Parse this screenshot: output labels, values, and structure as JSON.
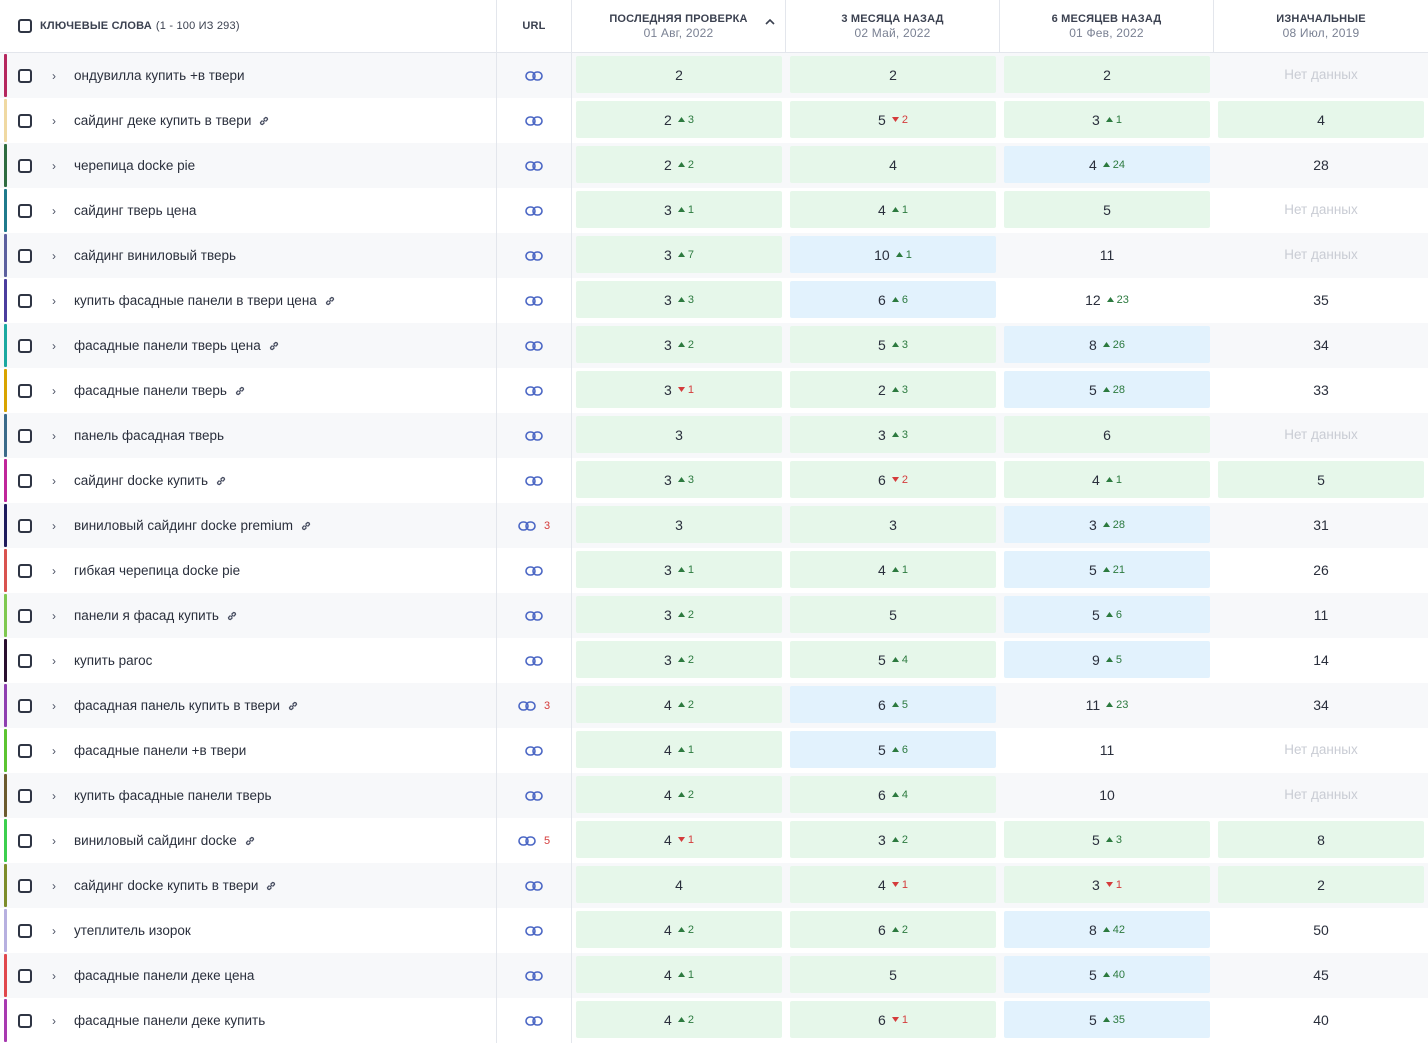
{
  "header": {
    "keywords_title": "Ключевые слова",
    "keywords_count": "(1 - 100 из 293)",
    "url_title": "URL",
    "col_last_title": "Последняя проверка",
    "col_last_date": "01 Авг, 2022",
    "col_3m_title": "3 месяца назад",
    "col_3m_date": "02 Май, 2022",
    "col_6m_title": "6 месяцев назад",
    "col_6m_date": "01 Фев, 2022",
    "col_init_title": "Изначальные",
    "col_init_date": "08 Июл, 2019",
    "sort_icon": "chevron-up-icon"
  },
  "rows": [
    {
      "kw": "ондувилла купить +в твери",
      "color": "#b5275e",
      "link": false,
      "url_count": "",
      "last": {
        "v": "2",
        "d": "",
        "dir": "",
        "bg": "green"
      },
      "m3": {
        "v": "2",
        "d": "",
        "dir": "",
        "bg": "green"
      },
      "m6": {
        "v": "2",
        "d": "",
        "dir": "",
        "bg": "green"
      },
      "init": {
        "v": "Нет данных",
        "d": "",
        "dir": "",
        "bg": "nodata"
      }
    },
    {
      "kw": "сайдинг деке купить в твери",
      "color": "#f0d9a2",
      "link": true,
      "url_count": "",
      "last": {
        "v": "2",
        "d": "3",
        "dir": "up",
        "bg": "green"
      },
      "m3": {
        "v": "5",
        "d": "2",
        "dir": "down",
        "bg": "green"
      },
      "m6": {
        "v": "3",
        "d": "1",
        "dir": "up",
        "bg": "green"
      },
      "init": {
        "v": "4",
        "d": "",
        "dir": "",
        "bg": "green"
      }
    },
    {
      "kw": "черепица docke pie",
      "color": "#2e6b3f",
      "link": false,
      "url_count": "",
      "last": {
        "v": "2",
        "d": "2",
        "dir": "up",
        "bg": "green"
      },
      "m3": {
        "v": "4",
        "d": "",
        "dir": "",
        "bg": "green"
      },
      "m6": {
        "v": "4",
        "d": "24",
        "dir": "up",
        "bg": "blue"
      },
      "init": {
        "v": "28",
        "d": "",
        "dir": "",
        "bg": "none"
      }
    },
    {
      "kw": "сайдинг тверь цена",
      "color": "#1f7a8c",
      "link": false,
      "url_count": "",
      "last": {
        "v": "3",
        "d": "1",
        "dir": "up",
        "bg": "green"
      },
      "m3": {
        "v": "4",
        "d": "1",
        "dir": "up",
        "bg": "green"
      },
      "m6": {
        "v": "5",
        "d": "",
        "dir": "",
        "bg": "green"
      },
      "init": {
        "v": "Нет данных",
        "d": "",
        "dir": "",
        "bg": "nodata"
      }
    },
    {
      "kw": "сайдинг виниловый тверь",
      "color": "#5b5f9e",
      "link": false,
      "url_count": "",
      "last": {
        "v": "3",
        "d": "7",
        "dir": "up",
        "bg": "green"
      },
      "m3": {
        "v": "10",
        "d": "1",
        "dir": "up",
        "bg": "blue"
      },
      "m6": {
        "v": "11",
        "d": "",
        "dir": "",
        "bg": "none"
      },
      "init": {
        "v": "Нет данных",
        "d": "",
        "dir": "",
        "bg": "nodata"
      }
    },
    {
      "kw": "купить фасадные панели в твери цена",
      "color": "#4b3d9e",
      "link": true,
      "url_count": "",
      "last": {
        "v": "3",
        "d": "3",
        "dir": "up",
        "bg": "green"
      },
      "m3": {
        "v": "6",
        "d": "6",
        "dir": "up",
        "bg": "blue"
      },
      "m6": {
        "v": "12",
        "d": "23",
        "dir": "up",
        "bg": "none"
      },
      "init": {
        "v": "35",
        "d": "",
        "dir": "",
        "bg": "none"
      }
    },
    {
      "kw": "фасадные панели тверь цена",
      "color": "#1aa8a0",
      "link": true,
      "url_count": "",
      "last": {
        "v": "3",
        "d": "2",
        "dir": "up",
        "bg": "green"
      },
      "m3": {
        "v": "5",
        "d": "3",
        "dir": "up",
        "bg": "green"
      },
      "m6": {
        "v": "8",
        "d": "26",
        "dir": "up",
        "bg": "blue"
      },
      "init": {
        "v": "34",
        "d": "",
        "dir": "",
        "bg": "none"
      }
    },
    {
      "kw": "фасадные панели тверь",
      "color": "#d9a400",
      "link": true,
      "url_count": "",
      "last": {
        "v": "3",
        "d": "1",
        "dir": "down",
        "bg": "green"
      },
      "m3": {
        "v": "2",
        "d": "3",
        "dir": "up",
        "bg": "green"
      },
      "m6": {
        "v": "5",
        "d": "28",
        "dir": "up",
        "bg": "blue"
      },
      "init": {
        "v": "33",
        "d": "",
        "dir": "",
        "bg": "none"
      }
    },
    {
      "kw": "панель фасадная тверь",
      "color": "#3a6a8a",
      "link": false,
      "url_count": "",
      "last": {
        "v": "3",
        "d": "",
        "dir": "",
        "bg": "green"
      },
      "m3": {
        "v": "3",
        "d": "3",
        "dir": "up",
        "bg": "green"
      },
      "m6": {
        "v": "6",
        "d": "",
        "dir": "",
        "bg": "green"
      },
      "init": {
        "v": "Нет данных",
        "d": "",
        "dir": "",
        "bg": "nodata"
      }
    },
    {
      "kw": "сайдинг docke купить",
      "color": "#c0269a",
      "link": true,
      "url_count": "",
      "last": {
        "v": "3",
        "d": "3",
        "dir": "up",
        "bg": "green"
      },
      "m3": {
        "v": "6",
        "d": "2",
        "dir": "down",
        "bg": "green"
      },
      "m6": {
        "v": "4",
        "d": "1",
        "dir": "up",
        "bg": "green"
      },
      "init": {
        "v": "5",
        "d": "",
        "dir": "",
        "bg": "green"
      }
    },
    {
      "kw": "виниловый сайдинг docke premium",
      "color": "#1e1a5c",
      "link": true,
      "url_count": "3",
      "last": {
        "v": "3",
        "d": "",
        "dir": "",
        "bg": "green"
      },
      "m3": {
        "v": "3",
        "d": "",
        "dir": "",
        "bg": "green"
      },
      "m6": {
        "v": "3",
        "d": "28",
        "dir": "up",
        "bg": "blue"
      },
      "init": {
        "v": "31",
        "d": "",
        "dir": "",
        "bg": "none"
      }
    },
    {
      "kw": "гибкая черепица docke pie",
      "color": "#d9534f",
      "link": false,
      "url_count": "",
      "last": {
        "v": "3",
        "d": "1",
        "dir": "up",
        "bg": "green"
      },
      "m3": {
        "v": "4",
        "d": "1",
        "dir": "up",
        "bg": "green"
      },
      "m6": {
        "v": "5",
        "d": "21",
        "dir": "up",
        "bg": "blue"
      },
      "init": {
        "v": "26",
        "d": "",
        "dir": "",
        "bg": "none"
      }
    },
    {
      "kw": "панели я фасад купить",
      "color": "#7ec850",
      "link": true,
      "url_count": "",
      "last": {
        "v": "3",
        "d": "2",
        "dir": "up",
        "bg": "green"
      },
      "m3": {
        "v": "5",
        "d": "",
        "dir": "",
        "bg": "green"
      },
      "m6": {
        "v": "5",
        "d": "6",
        "dir": "up",
        "bg": "blue"
      },
      "init": {
        "v": "11",
        "d": "",
        "dir": "",
        "bg": "none"
      }
    },
    {
      "kw": "купить parоc",
      "color": "#2a1030",
      "link": false,
      "url_count": "",
      "last": {
        "v": "3",
        "d": "2",
        "dir": "up",
        "bg": "green"
      },
      "m3": {
        "v": "5",
        "d": "4",
        "dir": "up",
        "bg": "green"
      },
      "m6": {
        "v": "9",
        "d": "5",
        "dir": "up",
        "bg": "blue"
      },
      "init": {
        "v": "14",
        "d": "",
        "dir": "",
        "bg": "none"
      }
    },
    {
      "kw": "фасадная панель купить в твери",
      "color": "#8e3fb0",
      "link": true,
      "url_count": "3",
      "last": {
        "v": "4",
        "d": "2",
        "dir": "up",
        "bg": "green"
      },
      "m3": {
        "v": "6",
        "d": "5",
        "dir": "up",
        "bg": "blue"
      },
      "m6": {
        "v": "11",
        "d": "23",
        "dir": "up",
        "bg": "none"
      },
      "init": {
        "v": "34",
        "d": "",
        "dir": "",
        "bg": "none"
      }
    },
    {
      "kw": "фасадные панели +в твери",
      "color": "#5cc431",
      "link": false,
      "url_count": "",
      "last": {
        "v": "4",
        "d": "1",
        "dir": "up",
        "bg": "green"
      },
      "m3": {
        "v": "5",
        "d": "6",
        "dir": "up",
        "bg": "blue"
      },
      "m6": {
        "v": "11",
        "d": "",
        "dir": "",
        "bg": "none"
      },
      "init": {
        "v": "Нет данных",
        "d": "",
        "dir": "",
        "bg": "nodata"
      }
    },
    {
      "kw": "купить фасадные панели тверь",
      "color": "#6b5a2e",
      "link": false,
      "url_count": "",
      "last": {
        "v": "4",
        "d": "2",
        "dir": "up",
        "bg": "green"
      },
      "m3": {
        "v": "6",
        "d": "4",
        "dir": "up",
        "bg": "green"
      },
      "m6": {
        "v": "10",
        "d": "",
        "dir": "",
        "bg": "none"
      },
      "init": {
        "v": "Нет данных",
        "d": "",
        "dir": "",
        "bg": "nodata"
      }
    },
    {
      "kw": "виниловый сайдинг docke",
      "color": "#3ccf4e",
      "link": true,
      "url_count": "5",
      "last": {
        "v": "4",
        "d": "1",
        "dir": "down",
        "bg": "green"
      },
      "m3": {
        "v": "3",
        "d": "2",
        "dir": "up",
        "bg": "green"
      },
      "m6": {
        "v": "5",
        "d": "3",
        "dir": "up",
        "bg": "green"
      },
      "init": {
        "v": "8",
        "d": "",
        "dir": "",
        "bg": "green"
      }
    },
    {
      "kw": "сайдинг docke купить в твери",
      "color": "#7c8c2a",
      "link": true,
      "url_count": "",
      "last": {
        "v": "4",
        "d": "",
        "dir": "",
        "bg": "green"
      },
      "m3": {
        "v": "4",
        "d": "1",
        "dir": "down",
        "bg": "green"
      },
      "m6": {
        "v": "3",
        "d": "1",
        "dir": "down",
        "bg": "green"
      },
      "init": {
        "v": "2",
        "d": "",
        "dir": "",
        "bg": "green"
      }
    },
    {
      "kw": "утеплитель изорок",
      "color": "#b7b0e0",
      "link": false,
      "url_count": "",
      "last": {
        "v": "4",
        "d": "2",
        "dir": "up",
        "bg": "green"
      },
      "m3": {
        "v": "6",
        "d": "2",
        "dir": "up",
        "bg": "green"
      },
      "m6": {
        "v": "8",
        "d": "42",
        "dir": "up",
        "bg": "blue"
      },
      "init": {
        "v": "50",
        "d": "",
        "dir": "",
        "bg": "none"
      }
    },
    {
      "kw": "фасадные панели деке цена",
      "color": "#e0474c",
      "link": false,
      "url_count": "",
      "last": {
        "v": "4",
        "d": "1",
        "dir": "up",
        "bg": "green"
      },
      "m3": {
        "v": "5",
        "d": "",
        "dir": "",
        "bg": "green"
      },
      "m6": {
        "v": "5",
        "d": "40",
        "dir": "up",
        "bg": "blue"
      },
      "init": {
        "v": "45",
        "d": "",
        "dir": "",
        "bg": "none"
      }
    },
    {
      "kw": "фасадные панели деке купить",
      "color": "#a83ab0",
      "link": false,
      "url_count": "",
      "last": {
        "v": "4",
        "d": "2",
        "dir": "up",
        "bg": "green"
      },
      "m3": {
        "v": "6",
        "d": "1",
        "dir": "down",
        "bg": "green"
      },
      "m6": {
        "v": "5",
        "d": "35",
        "dir": "up",
        "bg": "blue"
      },
      "init": {
        "v": "40",
        "d": "",
        "dir": "",
        "bg": "none"
      }
    }
  ]
}
